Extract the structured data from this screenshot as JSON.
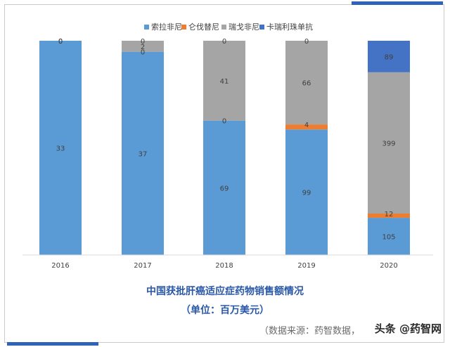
{
  "chart_data": {
    "type": "bar",
    "stacked": true,
    "categories": [
      "2016",
      "2017",
      "2018",
      "2019",
      "2020"
    ],
    "series": [
      {
        "name": "索拉非尼",
        "color": "#5b9bd5",
        "values": [
          33,
          37,
          69,
          99,
          105
        ]
      },
      {
        "name": "仑伐替尼",
        "color": "#ed7d31",
        "values": [
          0,
          0,
          0,
          4,
          12
        ]
      },
      {
        "name": "瑞戈非尼",
        "color": "#a5a5a5",
        "values": [
          0,
          2,
          41,
          66,
          399
        ]
      },
      {
        "name": "卡瑞利珠单抗",
        "color": "#4472c4",
        "values": [
          0,
          0,
          0,
          0,
          89
        ]
      }
    ],
    "normalized": true,
    "legend_position": "top",
    "grid": false,
    "title": "中国获批肝癌适应症药物销售额情况",
    "subtitle": "（单位：百万美元）"
  },
  "source_note": "（数据来源：药智数据，",
  "watermark": "头条 @药智网"
}
